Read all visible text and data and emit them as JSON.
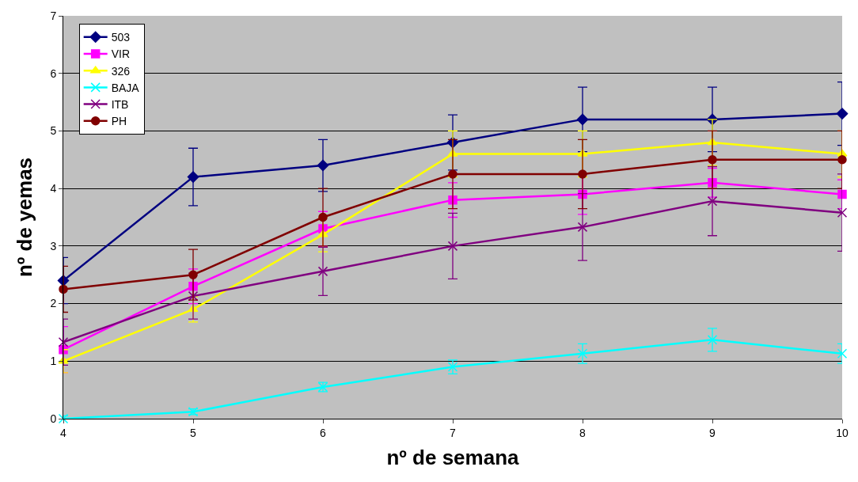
{
  "chart_data": {
    "type": "line",
    "xlabel": "nº de semana",
    "ylabel": "nº de yemas",
    "x": [
      4,
      5,
      6,
      7,
      8,
      9,
      10
    ],
    "series": [
      {
        "name": "503",
        "color": "#000080",
        "marker": "diamond",
        "values": [
          2.4,
          4.2,
          4.4,
          4.8,
          5.2,
          5.2,
          5.3
        ],
        "errors": [
          0.4,
          0.5,
          0.45,
          0.48,
          0.56,
          0.56,
          0.55
        ]
      },
      {
        "name": "VIR",
        "color": "#ff00ff",
        "marker": "square",
        "values": [
          1.2,
          2.3,
          3.3,
          3.8,
          3.9,
          4.1,
          3.9
        ],
        "errors": [
          0.4,
          0.3,
          0.3,
          0.3,
          0.35,
          0.25,
          0.25
        ]
      },
      {
        "name": "326",
        "color": "#ffff00",
        "marker": "triangle",
        "values": [
          1.0,
          1.9,
          3.2,
          4.6,
          4.6,
          4.8,
          4.6
        ],
        "errors": [
          0.2,
          0.22,
          0.3,
          0.4,
          0.4,
          0.4,
          0.4
        ]
      },
      {
        "name": "BAJA",
        "color": "#00ffff",
        "marker": "cross",
        "values": [
          0,
          0.12,
          0.55,
          0.9,
          1.13,
          1.37,
          1.13
        ],
        "errors": [
          0.05,
          0.05,
          0.08,
          0.12,
          0.17,
          0.2,
          0.17
        ]
      },
      {
        "name": "ITB",
        "color": "#800080",
        "marker": "cross",
        "values": [
          1.33,
          2.13,
          2.56,
          3.0,
          3.33,
          3.78,
          3.58
        ],
        "errors": [
          0.4,
          0.4,
          0.42,
          0.57,
          0.58,
          0.6,
          0.67
        ]
      },
      {
        "name": "PH",
        "color": "#800000",
        "marker": "circle",
        "values": [
          2.25,
          2.5,
          3.5,
          4.25,
          4.25,
          4.5,
          4.5
        ],
        "errors": [
          0.4,
          0.44,
          0.5,
          0.6,
          0.6,
          0.5,
          0.5
        ]
      }
    ],
    "xlim": [
      4,
      10
    ],
    "xticks": [
      4,
      5,
      6,
      7,
      8,
      9,
      10
    ],
    "ylim": [
      0,
      7
    ],
    "yticks": [
      0,
      1,
      2,
      3,
      4,
      5,
      6,
      7
    ],
    "grid": "y",
    "legend": "top left"
  }
}
